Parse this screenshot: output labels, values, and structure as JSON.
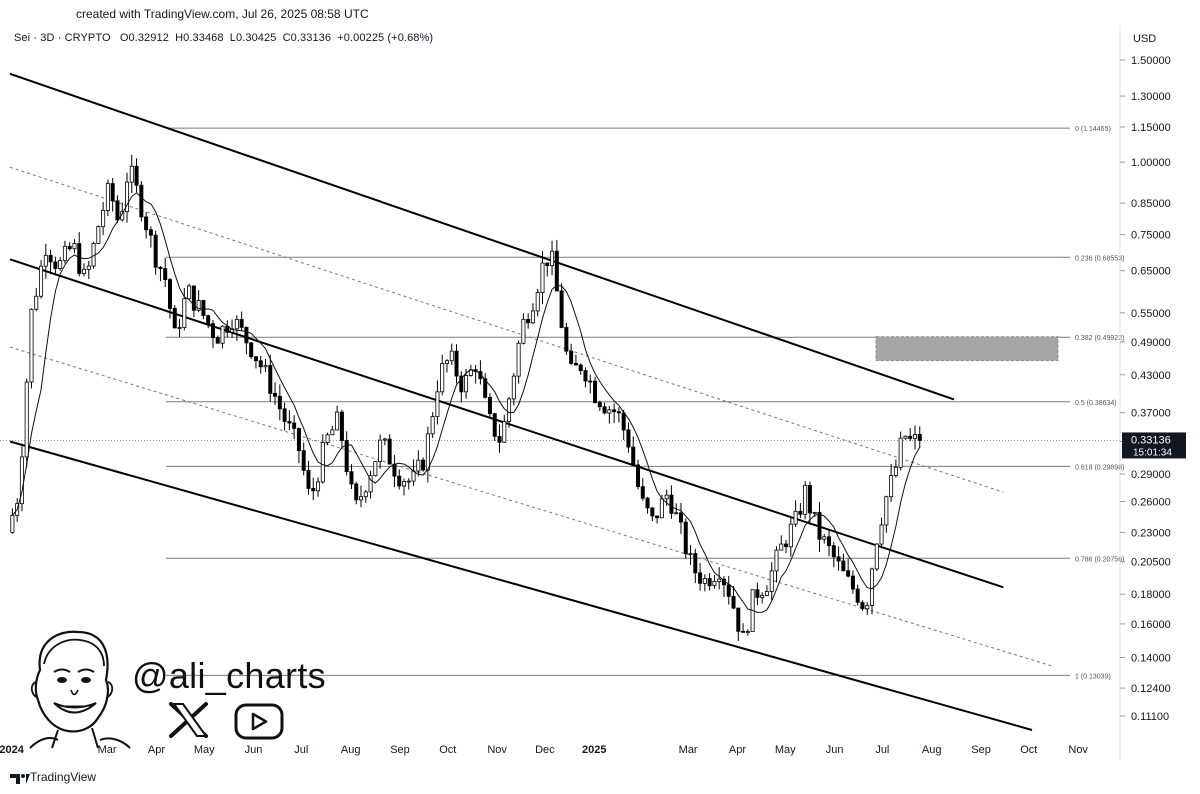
{
  "header": {
    "created_text": "created with TradingView.com, Jul 26, 2025 08:58 UTC",
    "symbol": "Sei · 3D · CRYPTO",
    "open_label": "O",
    "open": "0.32912",
    "high_label": "H",
    "high": "0.33468",
    "low_label": "L",
    "low": "0.30425",
    "close_label": "C",
    "close": "0.33136",
    "change": "+0.00225 (+0.68%)"
  },
  "branding": {
    "handle": "@ali_charts",
    "footer_logo_text": "TradingView",
    "icons": [
      "cartoon-avatar-icon",
      "x-logo-icon",
      "youtube-icon",
      "tradingview-logo-icon"
    ]
  },
  "colors": {
    "candle": "#000000",
    "fib_line": "#787b86",
    "channel": "#000000",
    "target_box": "#a6a6a6",
    "price_label_bg": "#131722"
  },
  "chart_data": {
    "type": "candlestick",
    "title": "",
    "currency": "USD",
    "y_scale": "log",
    "y_ticks": [
      "1.50000",
      "1.30000",
      "1.15000",
      "1.00000",
      "0.85000",
      "0.75000",
      "0.65000",
      "0.55000",
      "0.49000",
      "0.43000",
      "0.37000",
      "0.33000",
      "0.29000",
      "0.26000",
      "0.23000",
      "0.20500",
      "0.18000",
      "0.16000",
      "0.14000",
      "0.12400",
      "0.11100"
    ],
    "x_ticks": [
      "2024",
      "Mar",
      "Apr",
      "May",
      "Jun",
      "Jul",
      "Aug",
      "Sep",
      "Oct",
      "Nov",
      "Dec",
      "2025",
      "Mar",
      "Apr",
      "May",
      "Jun",
      "Jul",
      "Aug",
      "Sep",
      "Oct",
      "Nov"
    ],
    "last_price": {
      "value": "0.33136",
      "countdown": "15:01:34"
    },
    "fib_levels": [
      {
        "label": "0 (1.14465)",
        "value": 1.14465
      },
      {
        "label": "0.236 (0.68553)",
        "value": 0.68553
      },
      {
        "label": "0.382 (0.49922)",
        "value": 0.49922
      },
      {
        "label": "0.5 (0.38634)",
        "value": 0.38634
      },
      {
        "label": "0.618 (0.29898)",
        "value": 0.29898
      },
      {
        "label": "0.786 (0.20756)",
        "value": 0.20756
      },
      {
        "label": "1 (0.13039)",
        "value": 0.13039
      }
    ],
    "target_zone": {
      "low": 0.455,
      "high": 0.5
    },
    "channels": [
      {
        "style": "solid",
        "start": [
          "2023-12-31",
          1.42
        ],
        "end": [
          "2025-08-15",
          0.39
        ]
      },
      {
        "style": "solid",
        "start": [
          "2023-12-31",
          0.68
        ],
        "end": [
          "2025-09-15",
          0.185
        ]
      },
      {
        "style": "solid",
        "start": [
          "2023-12-31",
          0.33
        ],
        "end": [
          "2025-10-03",
          0.105
        ]
      },
      {
        "style": "dashed",
        "start": [
          "2023-12-31",
          0.98
        ],
        "end": [
          "2025-09-15",
          0.27
        ]
      },
      {
        "style": "dashed",
        "start": [
          "2023-12-31",
          0.48
        ],
        "end": [
          "2025-10-17",
          0.135
        ]
      }
    ],
    "price_path": [
      [
        "2023-12-31",
        0.23
      ],
      [
        "2024-01-07",
        0.27
      ],
      [
        "2024-01-15",
        0.55
      ],
      [
        "2024-01-24",
        0.72
      ],
      [
        "2024-02-01",
        0.66
      ],
      [
        "2024-02-10",
        0.72
      ],
      [
        "2024-02-18",
        0.62
      ],
      [
        "2024-02-27",
        0.8
      ],
      [
        "2024-03-04",
        0.9
      ],
      [
        "2024-03-10",
        0.78
      ],
      [
        "2024-03-16",
        0.98
      ],
      [
        "2024-03-23",
        0.86
      ],
      [
        "2024-04-01",
        0.7
      ],
      [
        "2024-04-08",
        0.63
      ],
      [
        "2024-04-14",
        0.5
      ],
      [
        "2024-04-22",
        0.6
      ],
      [
        "2024-05-01",
        0.55
      ],
      [
        "2024-05-10",
        0.5
      ],
      [
        "2024-05-20",
        0.54
      ],
      [
        "2024-06-01",
        0.48
      ],
      [
        "2024-06-12",
        0.42
      ],
      [
        "2024-06-22",
        0.36
      ],
      [
        "2024-07-01",
        0.32
      ],
      [
        "2024-07-08",
        0.26
      ],
      [
        "2024-07-18",
        0.33
      ],
      [
        "2024-07-26",
        0.36
      ],
      [
        "2024-08-05",
        0.25
      ],
      [
        "2024-08-14",
        0.29
      ],
      [
        "2024-08-22",
        0.33
      ],
      [
        "2024-09-01",
        0.29
      ],
      [
        "2024-09-10",
        0.28
      ],
      [
        "2024-09-18",
        0.31
      ],
      [
        "2024-09-27",
        0.43
      ],
      [
        "2024-10-04",
        0.46
      ],
      [
        "2024-10-12",
        0.41
      ],
      [
        "2024-10-20",
        0.45
      ],
      [
        "2024-10-28",
        0.36
      ],
      [
        "2024-11-05",
        0.33
      ],
      [
        "2024-11-12",
        0.42
      ],
      [
        "2024-11-18",
        0.52
      ],
      [
        "2024-11-25",
        0.58
      ],
      [
        "2024-12-01",
        0.66
      ],
      [
        "2024-12-06",
        0.7
      ],
      [
        "2024-12-12",
        0.55
      ],
      [
        "2024-12-18",
        0.43
      ],
      [
        "2024-12-26",
        0.45
      ],
      [
        "2025-01-03",
        0.4
      ],
      [
        "2025-01-10",
        0.38
      ],
      [
        "2025-01-17",
        0.37
      ],
      [
        "2025-01-24",
        0.33
      ],
      [
        "2025-02-01",
        0.26
      ],
      [
        "2025-02-08",
        0.24
      ],
      [
        "2025-02-18",
        0.27
      ],
      [
        "2025-02-26",
        0.23
      ],
      [
        "2025-03-05",
        0.2
      ],
      [
        "2025-03-13",
        0.19
      ],
      [
        "2025-03-22",
        0.2
      ],
      [
        "2025-03-29",
        0.18
      ],
      [
        "2025-04-06",
        0.15
      ],
      [
        "2025-04-13",
        0.18
      ],
      [
        "2025-04-22",
        0.19
      ],
      [
        "2025-05-01",
        0.22
      ],
      [
        "2025-05-09",
        0.24
      ],
      [
        "2025-05-15",
        0.27
      ],
      [
        "2025-05-23",
        0.23
      ],
      [
        "2025-06-01",
        0.21
      ],
      [
        "2025-06-10",
        0.19
      ],
      [
        "2025-06-17",
        0.18
      ],
      [
        "2025-06-22",
        0.17
      ],
      [
        "2025-06-28",
        0.22
      ],
      [
        "2025-07-04",
        0.26
      ],
      [
        "2025-07-10",
        0.29
      ],
      [
        "2025-07-16",
        0.34
      ],
      [
        "2025-07-20",
        0.33
      ],
      [
        "2025-07-25",
        0.3314
      ]
    ]
  }
}
